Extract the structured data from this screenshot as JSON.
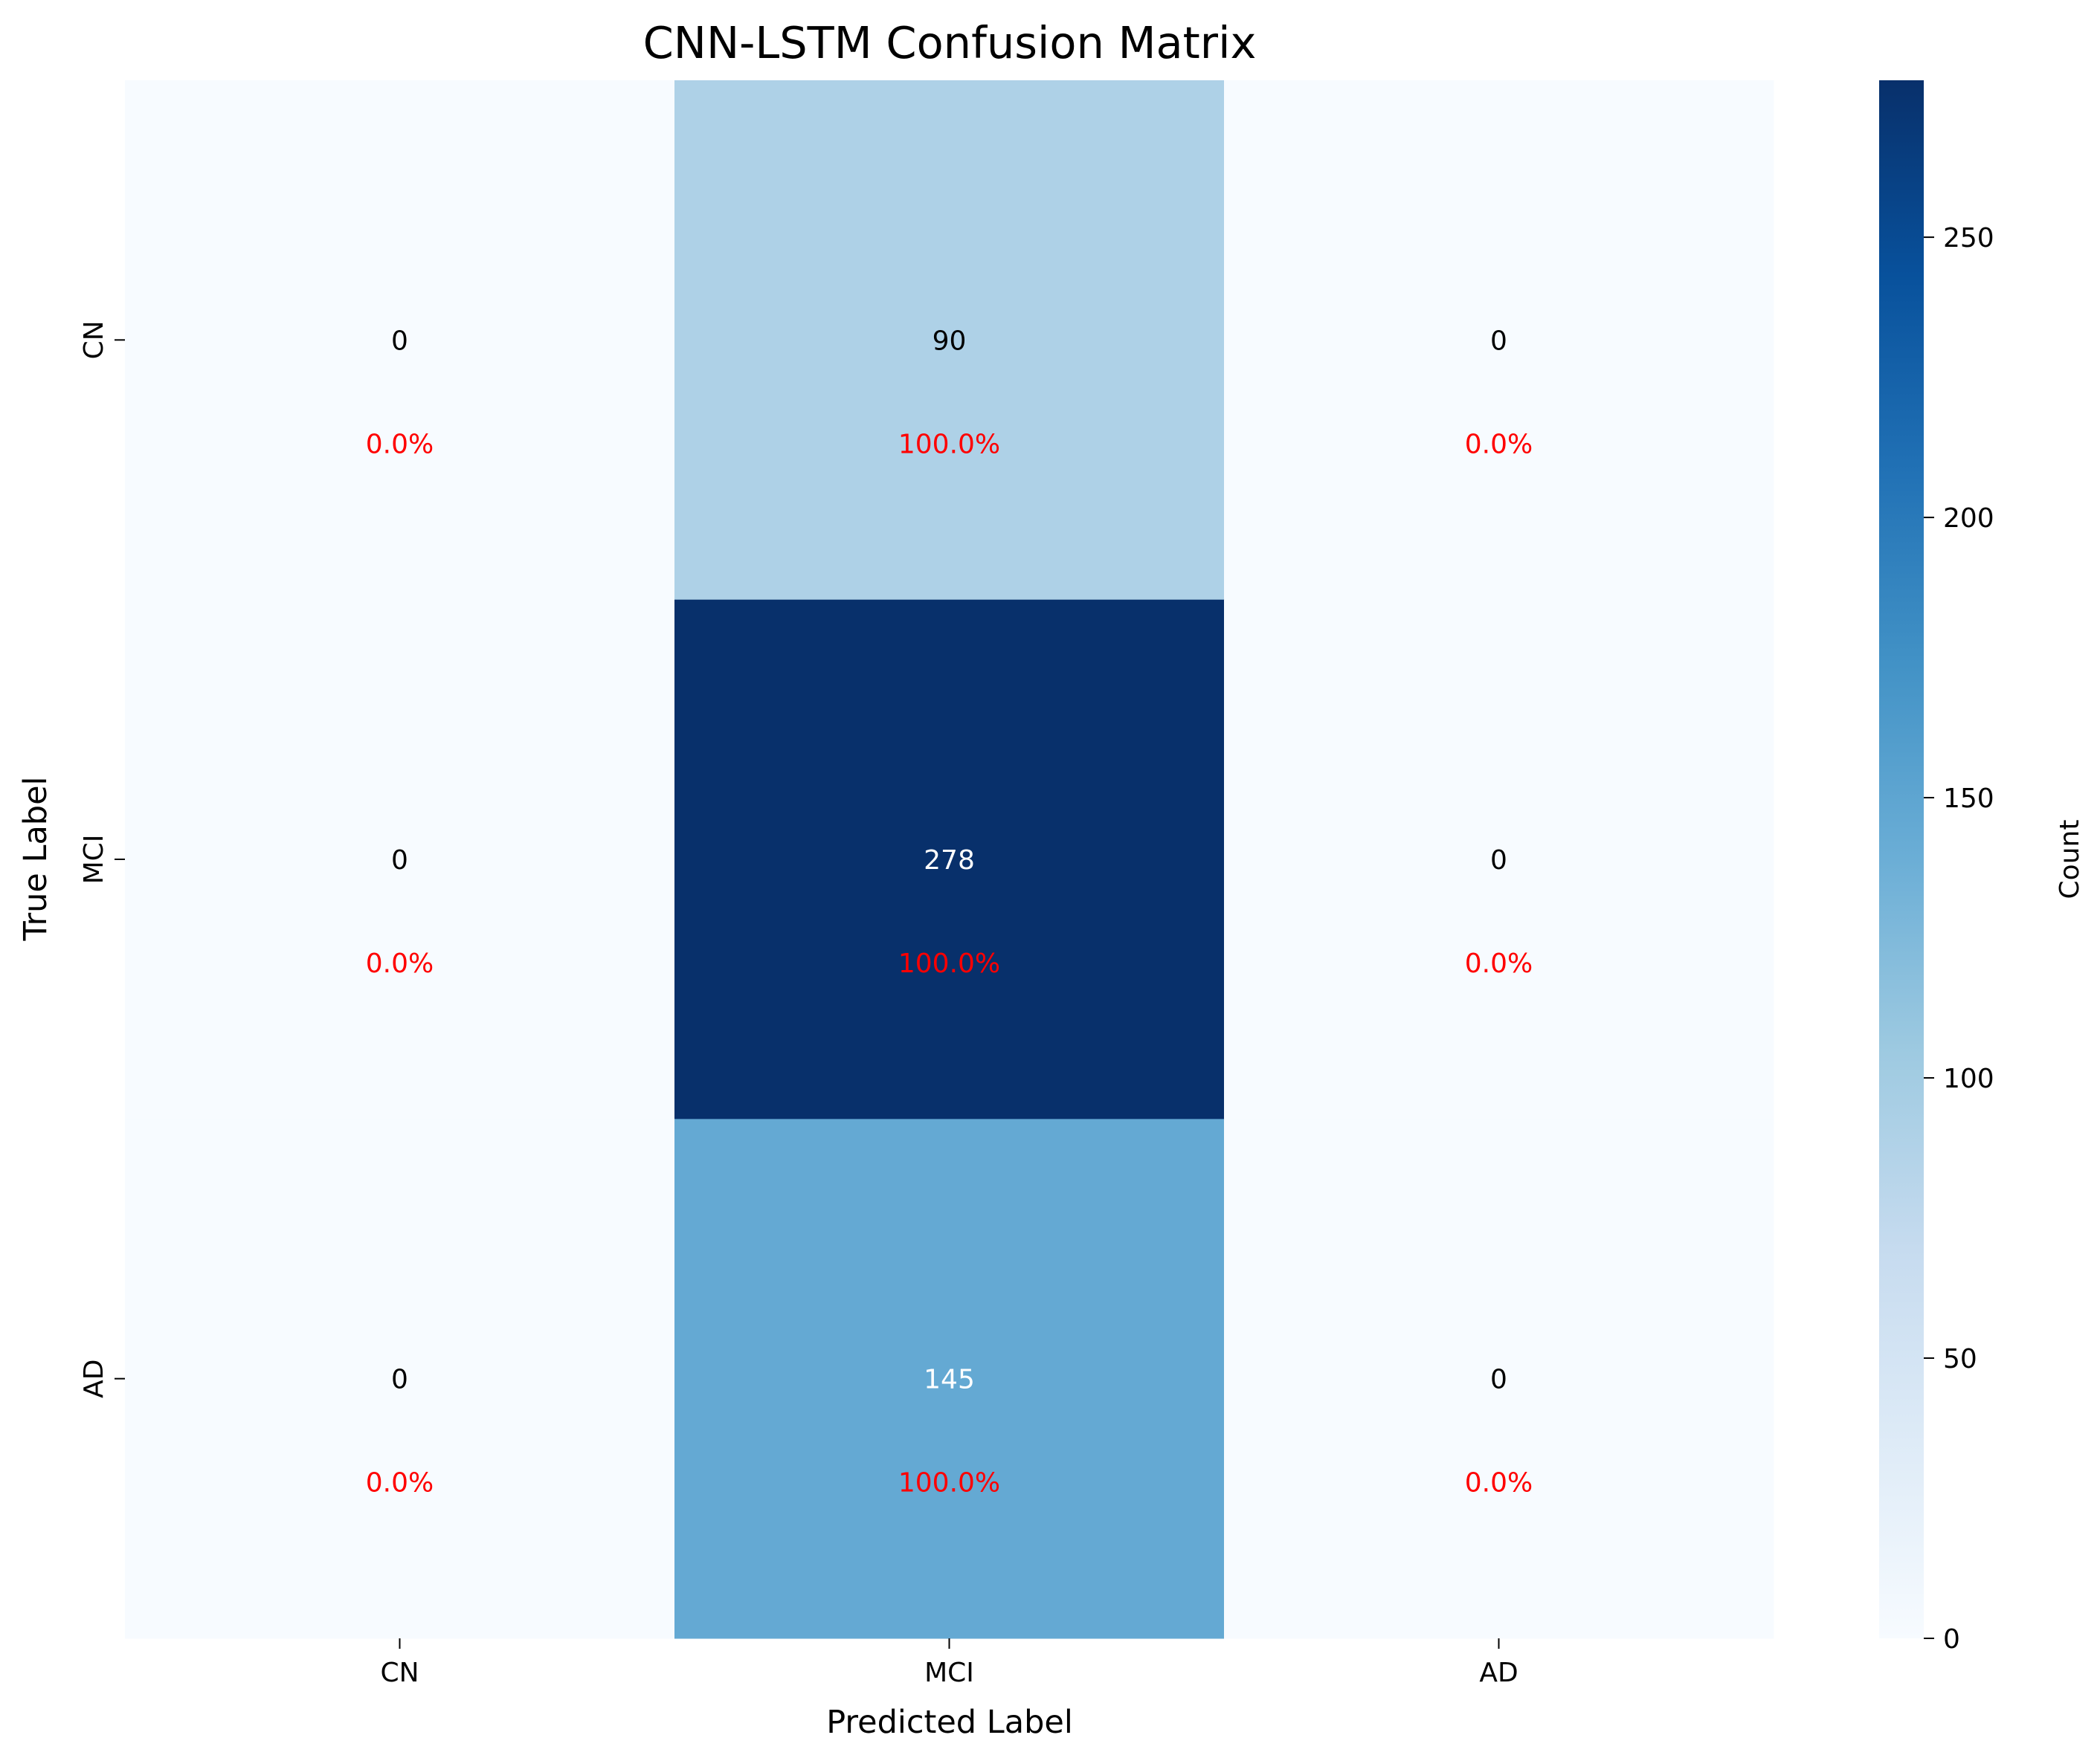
{
  "chart_data": {
    "type": "heatmap",
    "title": "CNN-LSTM Confusion Matrix",
    "xlabel": "Predicted Label",
    "ylabel": "True Label",
    "x_categories": [
      "CN",
      "MCI",
      "AD"
    ],
    "y_categories": [
      "CN",
      "MCI",
      "AD"
    ],
    "values": [
      [
        0,
        90,
        0
      ],
      [
        0,
        278,
        0
      ],
      [
        0,
        145,
        0
      ]
    ],
    "percentages": [
      [
        "0.0%",
        "100.0%",
        "0.0%"
      ],
      [
        "0.0%",
        "100.0%",
        "0.0%"
      ],
      [
        "0.0%",
        "100.0%",
        "0.0%"
      ]
    ],
    "value_labels": [
      [
        "0",
        "90",
        "0"
      ],
      [
        "0",
        "278",
        "0"
      ],
      [
        "0",
        "145",
        "0"
      ]
    ],
    "colormap": "Blues",
    "vmin": 0,
    "vmax": 278,
    "colorbar": {
      "label": "Count",
      "ticks": [
        0,
        50,
        100,
        150,
        200,
        250
      ],
      "tick_labels": [
        "0",
        "50",
        "100",
        "150",
        "200",
        "250"
      ]
    },
    "colors": {
      "percent_text": "#ff0000",
      "dark_text": "#000000",
      "light_text": "#ffffff"
    }
  }
}
